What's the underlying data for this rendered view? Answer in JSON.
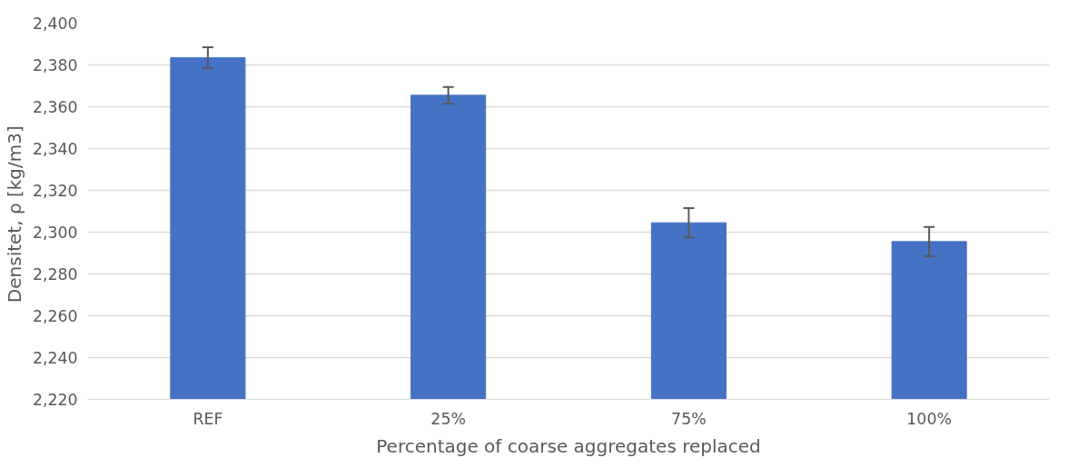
{
  "chart_data": {
    "type": "bar",
    "xlabel": "Percentage of coarse aggregates replaced",
    "ylabel": "Densitet, ρ  [kg/m3]",
    "categories": [
      "REF",
      "25%",
      "75%",
      "100%"
    ],
    "values": [
      2383.5,
      2365.5,
      2304.5,
      2295.5
    ],
    "errors": [
      5,
      4,
      7,
      7
    ],
    "color": "#4472c4",
    "ylim": [
      2220,
      2400
    ],
    "yticks": [
      {
        "value": 2220,
        "label": "2,220"
      },
      {
        "value": 2240,
        "label": "2,240"
      },
      {
        "value": 2260,
        "label": "2,260"
      },
      {
        "value": 2280,
        "label": "2,280"
      },
      {
        "value": 2300,
        "label": "2,300"
      },
      {
        "value": 2320,
        "label": "2,320"
      },
      {
        "value": 2340,
        "label": "2,340"
      },
      {
        "value": 2360,
        "label": "2,360"
      },
      {
        "value": 2380,
        "label": "2,380"
      },
      {
        "value": 2400,
        "label": "2,400"
      }
    ],
    "grid": "y"
  }
}
